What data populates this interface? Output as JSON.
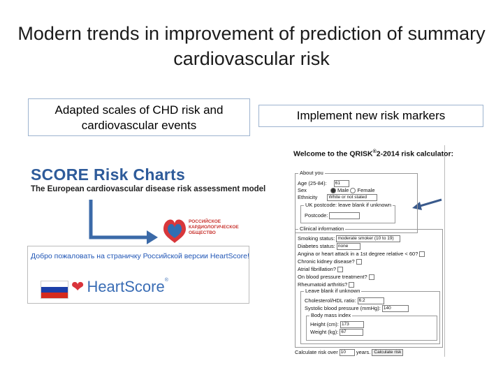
{
  "slide": {
    "title": "Modern trends in improvement of prediction of summary cardiovascular risk"
  },
  "left": {
    "box_label": "Adapted scales of CHD risk and cardiovascular events",
    "score_title": "SCORE Risk Charts",
    "score_subtitle": "The European cardiovascular disease risk assessment model",
    "rko_line1": "РОССИЙСКОЕ",
    "rko_line2": "КАРДИОЛОГИЧЕСКОЕ",
    "rko_line3": "ОБЩЕСТВО",
    "heartscore_link": "Добро пожаловать на страничку Российской версии HeartScore!",
    "heartscore_logo": "HeartScore",
    "flag_colors": [
      "#ffffff",
      "#1c3fa8",
      "#d52b1e"
    ]
  },
  "right": {
    "box_label": "Implement new risk markers",
    "arrow_color": "#3a5a8c"
  },
  "qrisk": {
    "title_pre": "Welcome to the QRISK",
    "title_sup": "®",
    "title_post": "2-2014 risk calculator:",
    "about_legend": "About you",
    "age_label": "Age (25-84):",
    "age_value": "61",
    "sex_label": "Sex",
    "sex_male": "Male",
    "sex_female": "Female",
    "ethnicity_label": "Ethnicity",
    "ethnicity_value": "White or not stated",
    "uk_legend": "UK postcode: leave blank if unknown",
    "postcode_label": "Postcode:",
    "clinical_legend": "Clinical information",
    "smoking_label": "Smoking status:",
    "smoking_value": "moderate smoker (10 to 19)",
    "diabetes_label": "Diabetes status:",
    "diabetes_value": "none",
    "angina_label": "Angina or heart attack in a 1st degree relative < 60?",
    "ckd_label": "Chronic kidney disease?",
    "af_label": "Atrial fibrillation?",
    "bp_treat_label": "On blood pressure treatment?",
    "ra_label": "Rheumatoid arthritis?",
    "leave_legend": "Leave blank if unknown",
    "chol_label": "Cholesterol/HDL ratio:",
    "chol_value": "6.2",
    "sbp_label": "Systolic blood pressure (mmHg):",
    "sbp_value": "140",
    "bmi_legend": "Body mass index",
    "height_label": "Height (cm):",
    "height_value": "173",
    "weight_label": "Weight (kg):",
    "weight_value": "67",
    "calc_label": "Calculate risk over",
    "calc_years_value": "10",
    "calc_years_suffix": "years.",
    "calc_button": "Calculate risk"
  }
}
